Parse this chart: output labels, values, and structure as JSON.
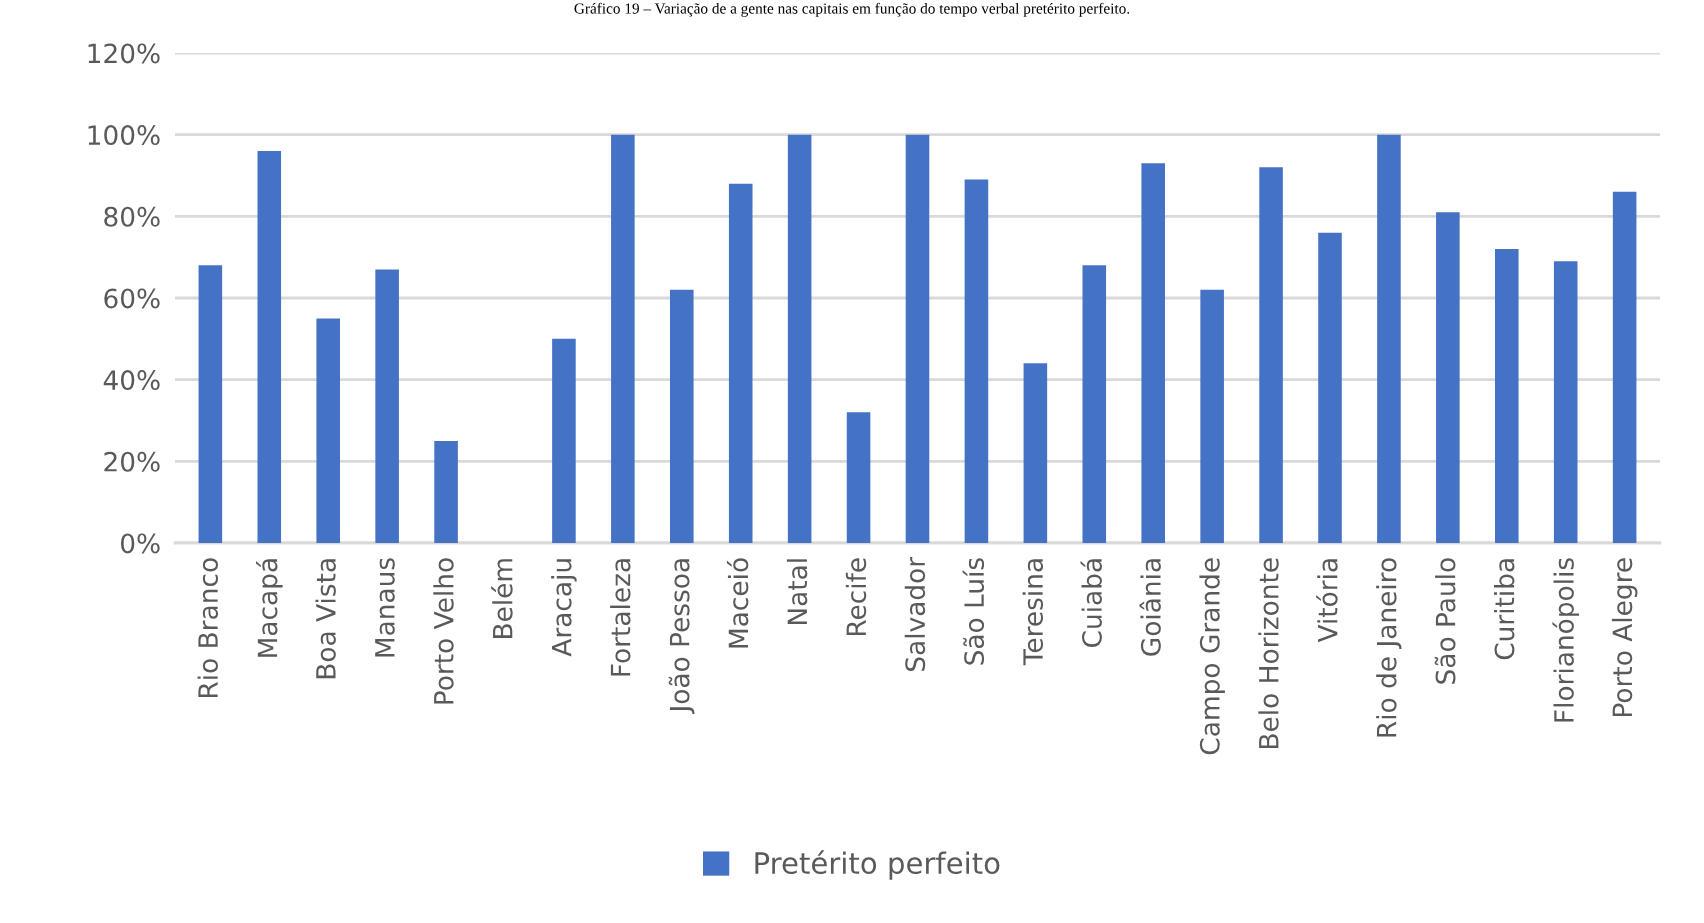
{
  "chart_data": {
    "type": "bar",
    "title": "Gráfico 19 – Variação de a gente nas capitais em função do tempo verbal pretérito perfeito.",
    "categories": [
      "Rio Branco",
      "Macapá",
      "Boa Vista",
      "Manaus",
      "Porto Velho",
      "Belém",
      "Aracaju",
      "Fortaleza",
      "João Pessoa",
      "Maceió",
      "Natal",
      "Recife",
      "Salvador",
      "São Luís",
      "Teresina",
      "Cuiabá",
      "Goiânia",
      "Campo Grande",
      "Belo Horizonte",
      "Vitória",
      "Rio de Janeiro",
      "São Paulo",
      "Curitiba",
      "Florianópolis",
      "Porto Alegre"
    ],
    "series": [
      {
        "name": "Pretérito perfeito",
        "color": "#4472c4",
        "values": [
          68,
          96,
          55,
          67,
          25,
          0,
          50,
          100,
          62,
          88,
          100,
          32,
          100,
          89,
          44,
          68,
          93,
          62,
          92,
          76,
          100,
          81,
          72,
          69,
          86
        ]
      }
    ],
    "ylim": [
      0,
      120
    ],
    "yticks": [
      {
        "value": 0,
        "label": "0%"
      },
      {
        "value": 20,
        "label": "20%"
      },
      {
        "value": 40,
        "label": "40%"
      },
      {
        "value": 60,
        "label": "60%"
      },
      {
        "value": 80,
        "label": "80%"
      },
      {
        "value": 100,
        "label": "100%"
      },
      {
        "value": 120,
        "label": "120%"
      }
    ],
    "grid": "y",
    "legend": "bottom"
  }
}
